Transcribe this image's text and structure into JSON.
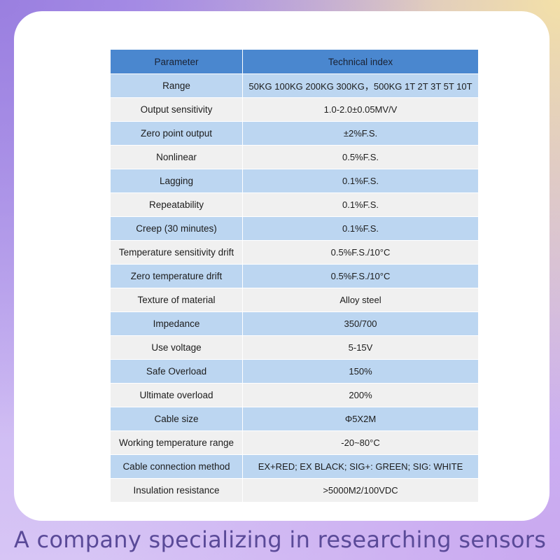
{
  "table": {
    "headers": {
      "parameter": "Parameter",
      "index": "Technical index"
    },
    "rows": [
      {
        "param": "Range",
        "value": "50KG 100KG 200KG 300KG，500KG 1T 2T 3T 5T 10T"
      },
      {
        "param": "Output sensitivity",
        "value": "1.0-2.0±0.05MV/V"
      },
      {
        "param": "Zero point output",
        "value": "±2%F.S."
      },
      {
        "param": "Nonlinear",
        "value": "0.5%F.S."
      },
      {
        "param": "Lagging",
        "value": "0.1%F.S."
      },
      {
        "param": "Repeatability",
        "value": "0.1%F.S."
      },
      {
        "param": "Creep (30 minutes)",
        "value": "0.1%F.S."
      },
      {
        "param": "Temperature sensitivity drift",
        "value": "0.5%F.S./10°C"
      },
      {
        "param": "Zero temperature drift",
        "value": "0.5%F.S./10°C"
      },
      {
        "param": "Texture of material",
        "value": "Alloy steel"
      },
      {
        "param": "Impedance",
        "value": "350/700"
      },
      {
        "param": "Use voltage",
        "value": "5-15V"
      },
      {
        "param": "Safe Overload",
        "value": "150%"
      },
      {
        "param": "Ultimate overload",
        "value": "200%"
      },
      {
        "param": "Cable size",
        "value": "Φ5X2M"
      },
      {
        "param": "Working temperature range",
        "value": "-20~80°C"
      },
      {
        "param": "Cable connection method",
        "value": "EX+RED; EX BLACK; SIG+: GREEN; SIG: WHITE"
      },
      {
        "param": "Insulation resistance",
        "value": ">5000M2/100VDC"
      }
    ]
  },
  "tagline": "A company specializing in researching sensors",
  "colors": {
    "header_bg": "#4a87cf",
    "row_blue": "#bcd6f1",
    "row_gray": "#f0f0f0",
    "tagline": "#5a4a98"
  }
}
